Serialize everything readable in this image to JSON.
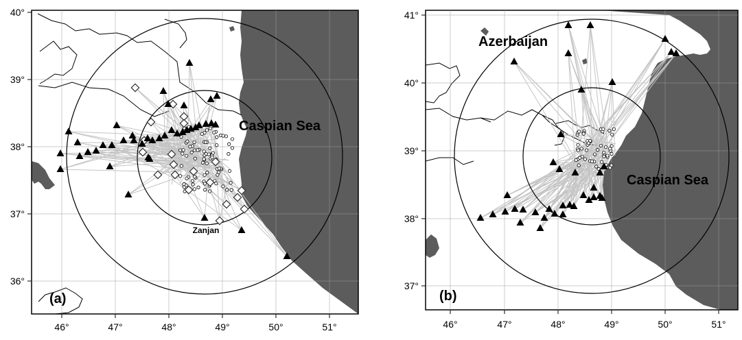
{
  "colors": {
    "sea": "#5c5c5c",
    "land": "#ffffff",
    "path": "#c4c4c4",
    "station": "#000000",
    "border": "#000000"
  },
  "panels": [
    {
      "id": "a",
      "tag": "(a)",
      "x_ticks": [
        "46°",
        "47°",
        "48°",
        "49°",
        "50°",
        "51°"
      ],
      "y_ticks": [
        "36°",
        "37°",
        "38°",
        "39°",
        "40°"
      ],
      "labels": {
        "sea": "Caspian Sea",
        "city": "Zanjan"
      },
      "legend": {
        "stations": "triangles",
        "events": "circles",
        "events_alt": "diamonds"
      }
    },
    {
      "id": "b",
      "tag": "(b)",
      "x_ticks": [
        "46°",
        "47°",
        "48°",
        "49°",
        "50°",
        "51°"
      ],
      "y_ticks": [
        "37°",
        "38°",
        "39°",
        "40°",
        "41°"
      ],
      "labels": {
        "sea": "Caspian Sea",
        "country": "Azerbaijan"
      }
    }
  ]
}
